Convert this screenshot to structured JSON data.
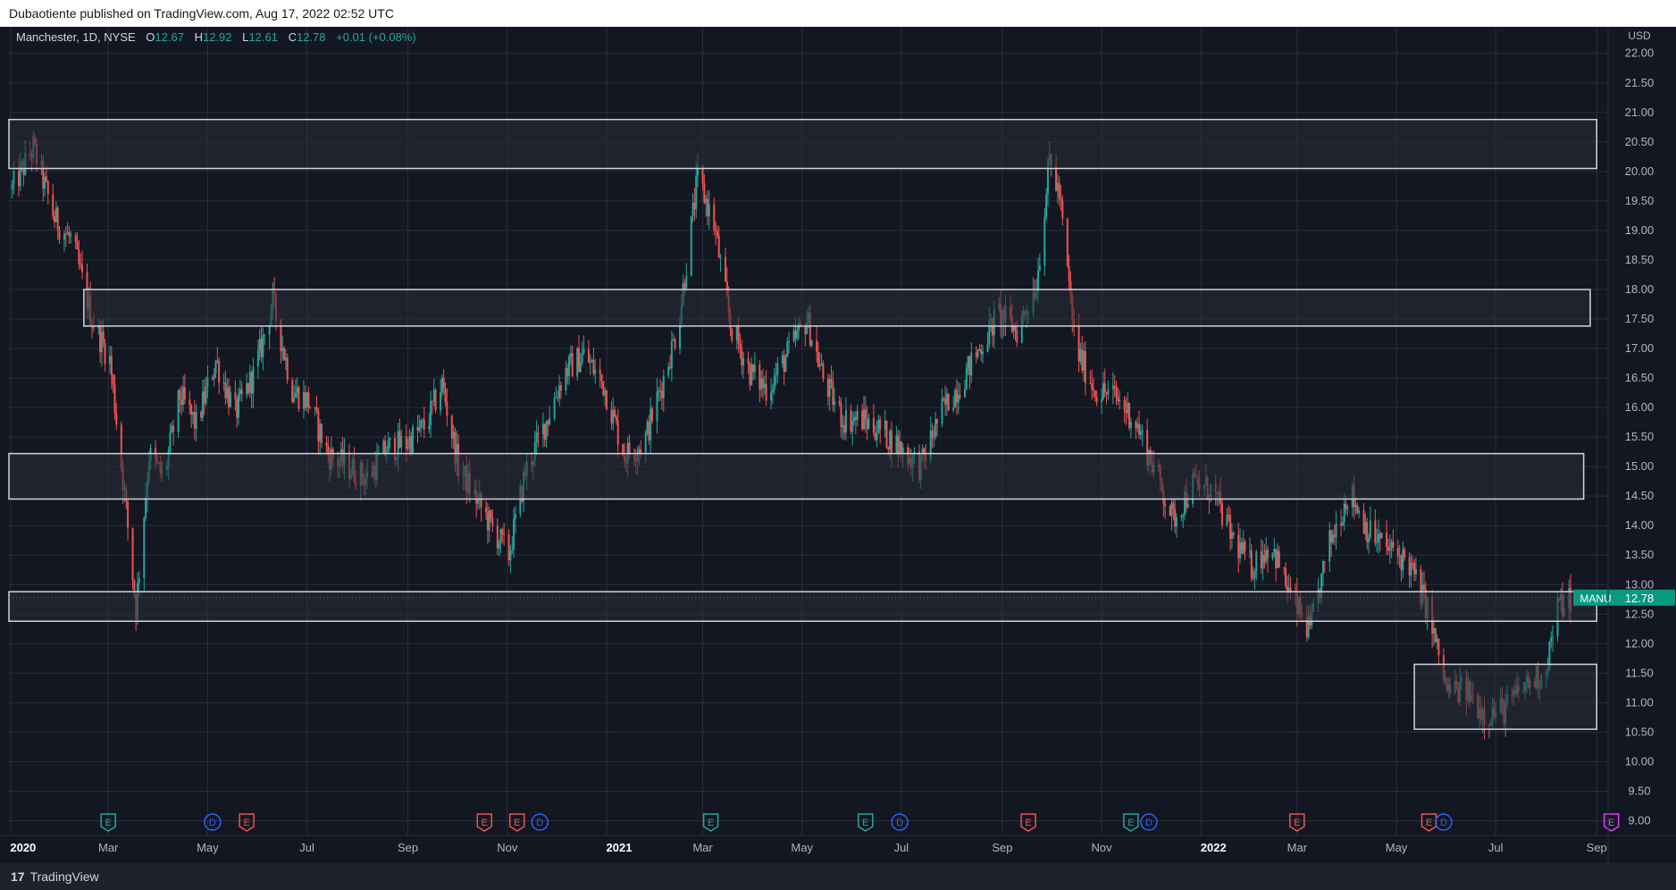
{
  "header": {
    "published_text": "Dubaotiente published on TradingView.com, Aug 17, 2022 02:52 UTC"
  },
  "legend": {
    "symbol_text": "Manchester, 1D, NYSE",
    "open_label": "O",
    "open": "12.67",
    "high_label": "H",
    "high": "12.92",
    "low_label": "L",
    "low": "12.61",
    "close_label": "C",
    "close": "12.78",
    "change": "+0.01 (+0.08%)"
  },
  "footer": {
    "brand": "TradingView",
    "logo_glyph": "17"
  },
  "colors": {
    "background": "#131722",
    "up": "#26a69a",
    "down": "#ef5350",
    "grid": "#2a2e39",
    "axis_text": "#b2b5be",
    "zone_stroke": "#d1d4dc",
    "zone_fill": "#2a2e39",
    "last_price": "#089981"
  },
  "chart_data": {
    "type": "candlestick",
    "currency_label": "USD",
    "price_ticks": [
      "9.00",
      "9.50",
      "10.00",
      "10.50",
      "11.00",
      "11.50",
      "12.00",
      "12.50",
      "13.00",
      "13.50",
      "14.00",
      "14.50",
      "15.00",
      "15.50",
      "16.00",
      "16.50",
      "17.00",
      "17.50",
      "18.00",
      "18.50",
      "19.00",
      "19.50",
      "20.00",
      "20.50",
      "21.00",
      "21.50",
      "22.00"
    ],
    "ylim": [
      8.75,
      22.45
    ],
    "time_ticks": [
      {
        "label": "2020",
        "date": "2020-01-01",
        "bold": true
      },
      {
        "label": "Mar",
        "date": "2020-03-01"
      },
      {
        "label": "May",
        "date": "2020-05-01"
      },
      {
        "label": "Jul",
        "date": "2020-07-01"
      },
      {
        "label": "Sep",
        "date": "2020-09-01"
      },
      {
        "label": "Nov",
        "date": "2020-11-01"
      },
      {
        "label": "2021",
        "date": "2021-01-01",
        "bold": true
      },
      {
        "label": "Mar",
        "date": "2021-03-01"
      },
      {
        "label": "May",
        "date": "2021-05-01"
      },
      {
        "label": "Jul",
        "date": "2021-07-01"
      },
      {
        "label": "Sep",
        "date": "2021-09-01"
      },
      {
        "label": "Nov",
        "date": "2021-11-01"
      },
      {
        "label": "2022",
        "date": "2022-01-01",
        "bold": true
      },
      {
        "label": "Mar",
        "date": "2022-03-01"
      },
      {
        "label": "May",
        "date": "2022-05-01"
      },
      {
        "label": "Jul",
        "date": "2022-07-01"
      },
      {
        "label": "Sep",
        "date": "2022-09-01"
      }
    ],
    "xlim": [
      "2019-12-31",
      "2022-09-08"
    ],
    "last_price": {
      "symbol": "MANU",
      "value": "12.78"
    },
    "zones": [
      {
        "start": "2019-12-31",
        "end": "2022-09-01",
        "low": 20.05,
        "high": 20.88
      },
      {
        "start": "2020-02-15",
        "end": "2022-08-28",
        "low": 17.38,
        "high": 18.0
      },
      {
        "start": "2019-12-31",
        "end": "2022-08-24",
        "low": 14.45,
        "high": 15.22
      },
      {
        "start": "2019-12-31",
        "end": "2022-09-01",
        "low": 12.38,
        "high": 12.88
      },
      {
        "start": "2022-05-12",
        "end": "2022-09-01",
        "low": 10.55,
        "high": 11.65
      }
    ],
    "price_path": [
      [
        "2020-01-02",
        19.7
      ],
      [
        "2020-01-15",
        20.4
      ],
      [
        "2020-01-28",
        19.2
      ],
      [
        "2020-02-08",
        18.8
      ],
      [
        "2020-02-20",
        17.5
      ],
      [
        "2020-03-02",
        16.8
      ],
      [
        "2020-03-10",
        14.8
      ],
      [
        "2020-03-18",
        12.6
      ],
      [
        "2020-03-26",
        15.2
      ],
      [
        "2020-04-04",
        14.8
      ],
      [
        "2020-04-14",
        16.2
      ],
      [
        "2020-04-24",
        15.7
      ],
      [
        "2020-05-06",
        16.8
      ],
      [
        "2020-05-18",
        15.9
      ],
      [
        "2020-05-30",
        16.6
      ],
      [
        "2020-06-10",
        17.8
      ],
      [
        "2020-06-22",
        16.3
      ],
      [
        "2020-07-02",
        16.1
      ],
      [
        "2020-07-14",
        15.2
      ],
      [
        "2020-07-26",
        15.0
      ],
      [
        "2020-08-07",
        14.8
      ],
      [
        "2020-08-19",
        15.3
      ],
      [
        "2020-08-31",
        15.4
      ],
      [
        "2020-09-12",
        15.7
      ],
      [
        "2020-09-22",
        16.4
      ],
      [
        "2020-10-02",
        15.0
      ],
      [
        "2020-10-12",
        14.5
      ],
      [
        "2020-10-22",
        14.0
      ],
      [
        "2020-11-02",
        13.5
      ],
      [
        "2020-11-12",
        14.9
      ],
      [
        "2020-11-24",
        15.7
      ],
      [
        "2020-12-06",
        16.6
      ],
      [
        "2020-12-18",
        16.9
      ],
      [
        "2020-12-30",
        16.4
      ],
      [
        "2021-01-12",
        15.2
      ],
      [
        "2021-01-24",
        15.4
      ],
      [
        "2021-02-04",
        16.4
      ],
      [
        "2021-02-14",
        17.4
      ],
      [
        "2021-02-26",
        19.9
      ],
      [
        "2021-03-08",
        19.1
      ],
      [
        "2021-03-18",
        17.4
      ],
      [
        "2021-03-30",
        16.6
      ],
      [
        "2021-04-10",
        16.3
      ],
      [
        "2021-04-22",
        16.9
      ],
      [
        "2021-05-04",
        17.5
      ],
      [
        "2021-05-14",
        16.5
      ],
      [
        "2021-05-26",
        15.8
      ],
      [
        "2021-06-07",
        15.8
      ],
      [
        "2021-06-19",
        15.6
      ],
      [
        "2021-07-01",
        15.3
      ],
      [
        "2021-07-13",
        15.0
      ],
      [
        "2021-07-25",
        15.9
      ],
      [
        "2021-08-06",
        16.4
      ],
      [
        "2021-08-18",
        17.0
      ],
      [
        "2021-08-30",
        17.6
      ],
      [
        "2021-09-10",
        17.3
      ],
      [
        "2021-09-22",
        18.1
      ],
      [
        "2021-09-30",
        20.2
      ],
      [
        "2021-10-06",
        19.6
      ],
      [
        "2021-10-16",
        17.0
      ],
      [
        "2021-10-28",
        16.3
      ],
      [
        "2021-11-09",
        16.2
      ],
      [
        "2021-11-21",
        15.8
      ],
      [
        "2021-12-03",
        15.0
      ],
      [
        "2021-12-15",
        14.1
      ],
      [
        "2021-12-27",
        14.7
      ],
      [
        "2022-01-08",
        14.6
      ],
      [
        "2022-01-20",
        13.8
      ],
      [
        "2022-02-01",
        13.3
      ],
      [
        "2022-02-13",
        13.7
      ],
      [
        "2022-02-25",
        12.8
      ],
      [
        "2022-03-09",
        12.2
      ],
      [
        "2022-03-21",
        13.7
      ],
      [
        "2022-04-02",
        14.6
      ],
      [
        "2022-04-14",
        13.9
      ],
      [
        "2022-04-26",
        13.6
      ],
      [
        "2022-05-08",
        13.4
      ],
      [
        "2022-05-20",
        12.6
      ],
      [
        "2022-06-01",
        11.2
      ],
      [
        "2022-06-13",
        11.2
      ],
      [
        "2022-06-25",
        10.8
      ],
      [
        "2022-07-07",
        10.9
      ],
      [
        "2022-07-19",
        11.3
      ],
      [
        "2022-07-31",
        11.5
      ],
      [
        "2022-08-08",
        12.6
      ],
      [
        "2022-08-16",
        12.78
      ]
    ],
    "events": [
      {
        "date": "2020-03-01",
        "type": "E",
        "color": "#26a69a"
      },
      {
        "date": "2020-05-04",
        "type": "D",
        "color": "#2962ff"
      },
      {
        "date": "2020-05-25",
        "type": "E",
        "color": "#ef5350"
      },
      {
        "date": "2020-10-18",
        "type": "E",
        "color": "#ef5350"
      },
      {
        "date": "2020-11-07",
        "type": "E",
        "color": "#ef5350"
      },
      {
        "date": "2020-11-21",
        "type": "D",
        "color": "#2962ff"
      },
      {
        "date": "2021-03-06",
        "type": "E",
        "color": "#26a69a"
      },
      {
        "date": "2021-06-09",
        "type": "E",
        "color": "#26a69a"
      },
      {
        "date": "2021-06-30",
        "type": "D",
        "color": "#2962ff"
      },
      {
        "date": "2021-09-17",
        "type": "E",
        "color": "#ef5350"
      },
      {
        "date": "2021-11-19",
        "type": "E",
        "color": "#26a69a"
      },
      {
        "date": "2021-11-30",
        "type": "D",
        "color": "#2962ff"
      },
      {
        "date": "2022-03-01",
        "type": "E",
        "color": "#ef5350"
      },
      {
        "date": "2022-05-21",
        "type": "E",
        "color": "#ef5350"
      },
      {
        "date": "2022-05-30",
        "type": "D",
        "color": "#2962ff"
      },
      {
        "date": "2022-09-10",
        "type": "E",
        "color": "#e040fb"
      }
    ]
  }
}
